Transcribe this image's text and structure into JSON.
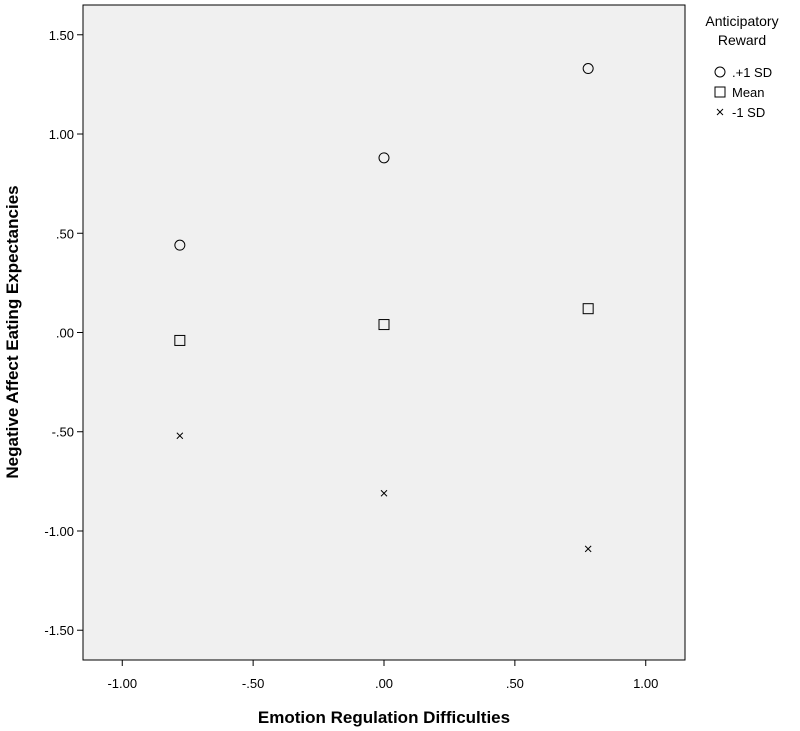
{
  "chart_data": {
    "type": "scatter",
    "title": "",
    "xlabel": "Emotion Regulation Difficulties",
    "ylabel": "Negative Affect Eating Expectancies",
    "xlim": [
      -1.15,
      1.15
    ],
    "ylim": [
      -1.65,
      1.65
    ],
    "x_ticks": [
      -1.0,
      -0.5,
      0.0,
      0.5,
      1.0
    ],
    "x_tick_labels": [
      "-1.00",
      "-.50",
      ".00",
      ".50",
      "1.00"
    ],
    "y_ticks": [
      1.5,
      1.0,
      0.5,
      0.0,
      -0.5,
      -1.0,
      -1.5
    ],
    "y_tick_labels": [
      "1.50",
      "1.00",
      ".50",
      ".00",
      "-.50",
      "-1.00",
      "-1.50"
    ],
    "grid": false,
    "plot_background": "#f0f0f0",
    "legend": {
      "title_line1": "Anticipatory",
      "title_line2": "Reward",
      "placement": "outside-top-right"
    },
    "series": [
      {
        "name": ".+1 SD",
        "marker": "circle",
        "x": [
          -0.78,
          0.0,
          0.78
        ],
        "y": [
          0.44,
          0.88,
          1.33
        ]
      },
      {
        "name": "Mean",
        "marker": "square",
        "x": [
          -0.78,
          0.0,
          0.78
        ],
        "y": [
          -0.04,
          0.04,
          0.12
        ]
      },
      {
        "name": "-1 SD",
        "marker": "x",
        "x": [
          -0.78,
          0.0,
          0.78
        ],
        "y": [
          -0.52,
          -0.81,
          -1.09
        ]
      }
    ]
  }
}
